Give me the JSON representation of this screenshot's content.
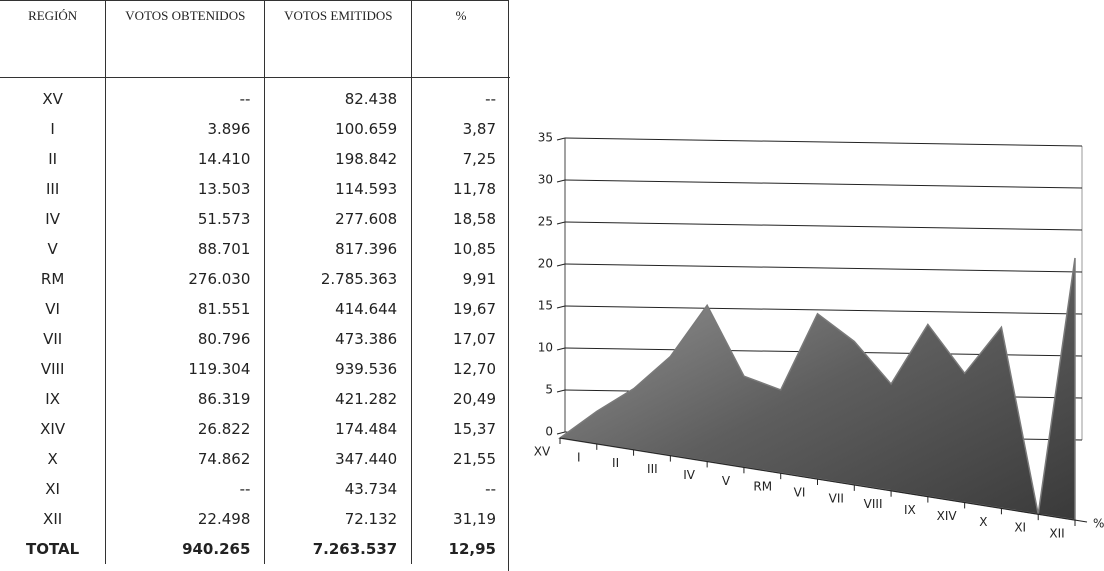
{
  "table": {
    "header": [
      "REGIÓN",
      "VOTOS OBTENIDOS",
      "VOTOS EMITIDOS",
      "%"
    ],
    "rows": [
      [
        "XV",
        "--",
        "82.438",
        "--"
      ],
      [
        "I",
        "3.896",
        "100.659",
        "3,87"
      ],
      [
        "II",
        "14.410",
        "198.842",
        "7,25"
      ],
      [
        "III",
        "13.503",
        "114.593",
        "11,78"
      ],
      [
        "IV",
        "51.573",
        "277.608",
        "18,58"
      ],
      [
        "V",
        "88.701",
        "817.396",
        "10,85"
      ],
      [
        "RM",
        "276.030",
        "2.785.363",
        "9,91"
      ],
      [
        "VI",
        "81.551",
        "414.644",
        "19,67"
      ],
      [
        "VII",
        "80.796",
        "473.386",
        "17,07"
      ],
      [
        "VIII",
        "119.304",
        "939.536",
        "12,70"
      ],
      [
        "IX",
        "86.319",
        "421.282",
        "20,49"
      ],
      [
        "XIV",
        "26.822",
        "174.484",
        "15,37"
      ],
      [
        "X",
        "74.862",
        "347.440",
        "21,55"
      ],
      [
        "XI",
        "--",
        "43.734",
        "--"
      ],
      [
        "XII",
        "22.498",
        "72.132",
        "31,19"
      ]
    ],
    "total": [
      "TOTAL",
      "940.265",
      "7.263.537",
      "12,95"
    ]
  },
  "chart_data": {
    "type": "area3d",
    "categories": [
      "XV",
      "I",
      "II",
      "III",
      "IV",
      "V",
      "RM",
      "VI",
      "VII",
      "VIII",
      "IX",
      "XIV",
      "X",
      "XI",
      "XII"
    ],
    "series": [
      {
        "name": "%",
        "color": "#7a7a7a",
        "values": [
          0,
          3.87,
          7.25,
          11.78,
          18.58,
          10.85,
          9.91,
          19.67,
          17.07,
          12.7,
          20.49,
          15.37,
          21.55,
          0,
          31.19
        ]
      }
    ],
    "ylim": [
      0,
      35
    ],
    "yticks": [
      0,
      5,
      10,
      15,
      20,
      25,
      30,
      35
    ],
    "grid": true
  }
}
